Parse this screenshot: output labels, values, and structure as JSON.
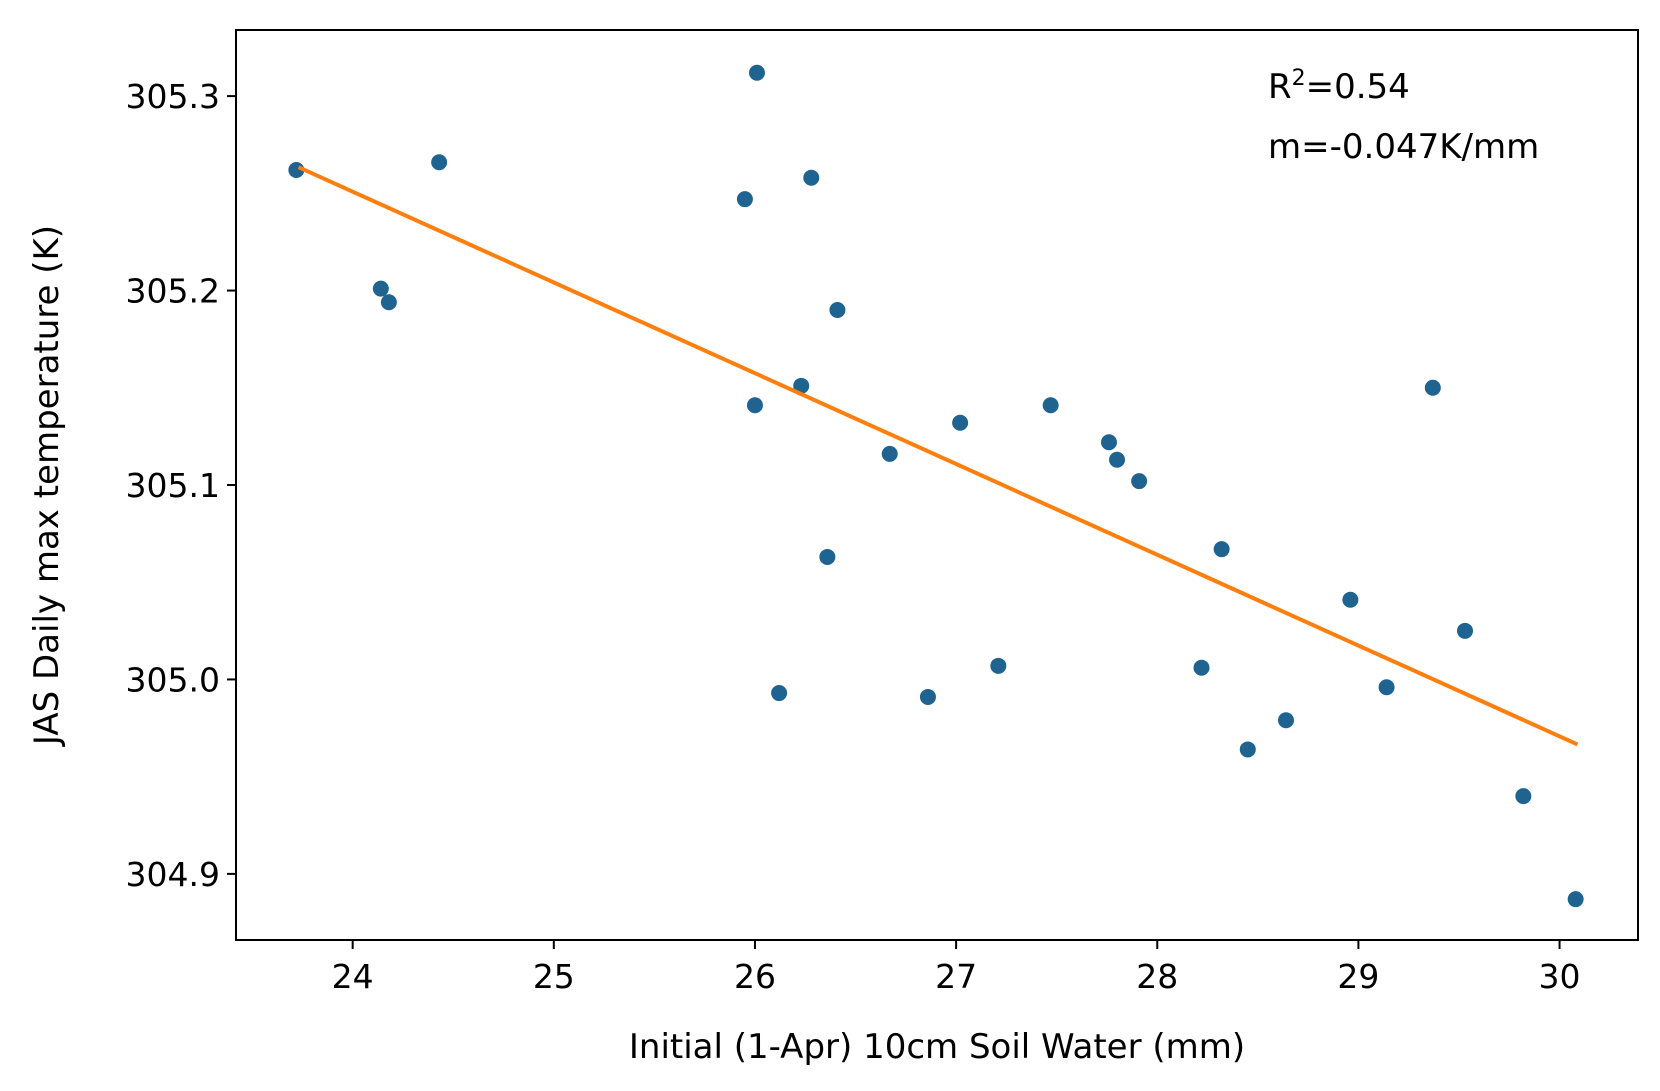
{
  "chart_data": {
    "type": "scatter",
    "title": "",
    "xlabel": "Initial (1-Apr) 10cm Soil Water (mm)",
    "ylabel": "JAS Daily max temperature (K)",
    "xlim": [
      23.42,
      30.39
    ],
    "ylim": [
      304.866,
      305.334
    ],
    "x_ticks": [
      24,
      25,
      26,
      27,
      28,
      29,
      30
    ],
    "x_tick_labels": [
      "24",
      "25",
      "26",
      "27",
      "28",
      "29",
      "30"
    ],
    "y_ticks": [
      304.9,
      305.0,
      305.1,
      305.2,
      305.3
    ],
    "y_tick_labels": [
      "304.9",
      "305.0",
      "305.1",
      "305.2",
      "305.3"
    ],
    "grid": false,
    "annotations": {
      "r2_prefix": "R",
      "r2_sup": "2",
      "r2_suffix": "=0.54",
      "slope": "m=-0.047K/mm"
    },
    "series": [
      {
        "type": "scatter",
        "color": "#1f6391",
        "points": [
          [
            23.72,
            305.262
          ],
          [
            24.14,
            305.201
          ],
          [
            24.18,
            305.194
          ],
          [
            24.43,
            305.266
          ],
          [
            25.95,
            305.247
          ],
          [
            26.0,
            305.141
          ],
          [
            26.01,
            305.312
          ],
          [
            26.12,
            304.993
          ],
          [
            26.23,
            305.151
          ],
          [
            26.28,
            305.258
          ],
          [
            26.36,
            305.063
          ],
          [
            26.41,
            305.19
          ],
          [
            26.67,
            305.116
          ],
          [
            26.86,
            304.991
          ],
          [
            27.02,
            305.132
          ],
          [
            27.21,
            305.007
          ],
          [
            27.47,
            305.141
          ],
          [
            27.76,
            305.122
          ],
          [
            27.8,
            305.113
          ],
          [
            27.91,
            305.102
          ],
          [
            28.22,
            305.006
          ],
          [
            28.32,
            305.067
          ],
          [
            28.45,
            304.964
          ],
          [
            28.64,
            304.979
          ],
          [
            28.96,
            305.041
          ],
          [
            29.14,
            304.996
          ],
          [
            29.37,
            305.15
          ],
          [
            29.53,
            305.025
          ],
          [
            29.82,
            304.94
          ],
          [
            30.08,
            304.887
          ]
        ]
      },
      {
        "type": "line",
        "color": "#ff7f0e",
        "points": [
          [
            23.74,
            305.263
          ],
          [
            30.08,
            304.967
          ]
        ]
      }
    ]
  }
}
